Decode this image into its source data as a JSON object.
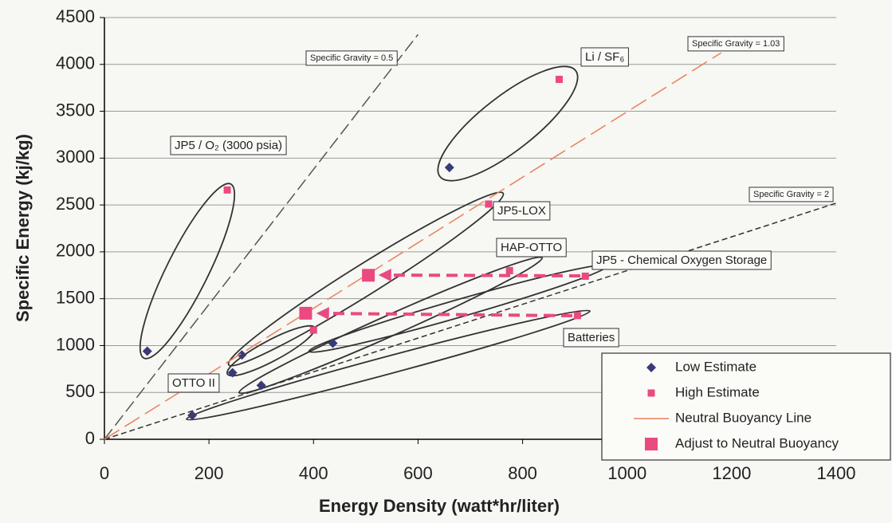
{
  "chart_data": {
    "type": "scatter",
    "xlabel": "Energy Density (watt*hr/liter)",
    "ylabel": "Specific Energy (kj/kg)",
    "xlim": [
      0,
      1400
    ],
    "ylim": [
      0,
      4500
    ],
    "xticks": [
      0,
      200,
      400,
      600,
      800,
      1000,
      1200,
      1400
    ],
    "yticks": [
      0,
      500,
      1000,
      1500,
      2000,
      2500,
      3000,
      3500,
      4000,
      4500
    ],
    "grid": true,
    "legend": "lower right",
    "series": [
      {
        "name": "Low Estimate",
        "marker": "diamond",
        "color": "#3a3a78",
        "x": [
          82,
          263,
          245,
          300,
          168,
          437,
          660
        ],
        "y": [
          940,
          900,
          710,
          575,
          255,
          1025,
          2900
        ]
      },
      {
        "name": "High Estimate",
        "marker": "square",
        "color": "#ea4a80",
        "x": [
          235,
          870,
          735,
          400,
          775,
          905,
          920
        ],
        "y": [
          2660,
          3840,
          2510,
          1165,
          1800,
          1320,
          1740
        ]
      },
      {
        "name": "Neutral Buoyancy Line",
        "marker": "line",
        "color": "#e8825a",
        "x": [
          0,
          1180
        ],
        "y": [
          0,
          4124
        ]
      },
      {
        "name": "Adjust to Neutral Buoyancy",
        "marker": "bigsquare",
        "color": "#ea4a80",
        "x": [
          505,
          385
        ],
        "y": [
          1750,
          1345
        ]
      }
    ],
    "reference_lines": [
      {
        "x": [
          0,
          600
        ],
        "y": [
          0,
          4320
        ],
        "color": "#555555"
      },
      {
        "x": [
          0,
          1400
        ],
        "y": [
          0,
          2520
        ],
        "color": "#333333"
      }
    ],
    "annotations": [
      "Specific Gravity = 0.5",
      "Li / SF₆",
      "Specific Gravity = 1.03",
      "JP5 / O₂ (3000 psia)",
      "JP5-LOX",
      "Specific Gravity = 2",
      "HAP-OTTO",
      "JP5 - Chemical Oxygen Storage",
      "Batteries",
      "OTTO II"
    ]
  }
}
